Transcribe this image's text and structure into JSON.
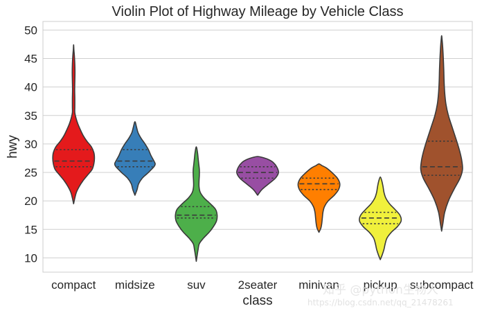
{
  "chart_data": {
    "type": "violin",
    "title": "Violin Plot of Highway Mileage by Vehicle Class",
    "xlabel": "class",
    "ylabel": "hwy",
    "ylim": [
      7.5,
      51.5
    ],
    "yticks": [
      10,
      15,
      20,
      25,
      30,
      35,
      40,
      45,
      50
    ],
    "grid": "horizontal",
    "legend": "none",
    "inner": "quartile",
    "categories": [
      "compact",
      "midsize",
      "suv",
      "2seater",
      "minivan",
      "pickup",
      "subcompact"
    ],
    "violins": [
      {
        "category": "compact",
        "color": "#e41a1c",
        "min": 19.5,
        "max": 47.4,
        "q1": 26.0,
        "median": 27.0,
        "q3": 29.0,
        "profile": [
          [
            19.5,
            0
          ],
          [
            20.5,
            0.04
          ],
          [
            21.5,
            0.09
          ],
          [
            22.5,
            0.18
          ],
          [
            23.5,
            0.3
          ],
          [
            24.5,
            0.45
          ],
          [
            25.5,
            0.6
          ],
          [
            26.5,
            0.66
          ],
          [
            27.5,
            0.68
          ],
          [
            28.5,
            0.66
          ],
          [
            29.5,
            0.58
          ],
          [
            30.5,
            0.43
          ],
          [
            31.5,
            0.31
          ],
          [
            32.5,
            0.22
          ],
          [
            33.5,
            0.14
          ],
          [
            34.5,
            0.08
          ],
          [
            35.5,
            0.04
          ],
          [
            36.5,
            0.04
          ],
          [
            38,
            0.04
          ],
          [
            39.5,
            0.035
          ],
          [
            41,
            0.04
          ],
          [
            42.5,
            0.045
          ],
          [
            44,
            0.04
          ],
          [
            45.5,
            0.025
          ],
          [
            46.5,
            0.01
          ],
          [
            47.4,
            0
          ]
        ]
      },
      {
        "category": "midsize",
        "color": "#377eb8",
        "min": 21.0,
        "max": 33.9,
        "q1": 26.0,
        "median": 27.0,
        "q3": 29.0,
        "profile": [
          [
            21.0,
            0
          ],
          [
            22.0,
            0.07
          ],
          [
            23.0,
            0.12
          ],
          [
            24.0,
            0.24
          ],
          [
            25.0,
            0.44
          ],
          [
            26.0,
            0.62
          ],
          [
            26.5,
            0.66
          ],
          [
            27.0,
            0.62
          ],
          [
            28.0,
            0.52
          ],
          [
            29.0,
            0.44
          ],
          [
            30.0,
            0.33
          ],
          [
            31.0,
            0.2
          ],
          [
            32.0,
            0.1
          ],
          [
            33.0,
            0.05
          ],
          [
            33.9,
            0
          ]
        ]
      },
      {
        "category": "suv",
        "color": "#4daf4a",
        "min": 9.4,
        "max": 29.5,
        "q1": 17.0,
        "median": 17.5,
        "q3": 19.0,
        "profile": [
          [
            9.4,
            0
          ],
          [
            10.5,
            0.03
          ],
          [
            11.5,
            0.06
          ],
          [
            12.5,
            0.1
          ],
          [
            13.5,
            0.24
          ],
          [
            14.5,
            0.42
          ],
          [
            15.5,
            0.56
          ],
          [
            16.5,
            0.66
          ],
          [
            17.5,
            0.68
          ],
          [
            18.5,
            0.63
          ],
          [
            19.5,
            0.46
          ],
          [
            20.5,
            0.26
          ],
          [
            21.5,
            0.13
          ],
          [
            22.5,
            0.09
          ],
          [
            23.5,
            0.09
          ],
          [
            24.5,
            0.1
          ],
          [
            25.5,
            0.1
          ],
          [
            26.5,
            0.08
          ],
          [
            27.5,
            0.06
          ],
          [
            28.5,
            0.04
          ],
          [
            29.5,
            0
          ]
        ]
      },
      {
        "category": "2seater",
        "color": "#984ea3",
        "min": 21.0,
        "max": 27.8,
        "q1": 24.0,
        "median": 25.0,
        "q3": 26.0,
        "profile": [
          [
            21.0,
            0
          ],
          [
            22.0,
            0.14
          ],
          [
            23.0,
            0.36
          ],
          [
            24.0,
            0.58
          ],
          [
            25.0,
            0.68
          ],
          [
            26.0,
            0.62
          ],
          [
            26.8,
            0.5
          ],
          [
            27.3,
            0.34
          ],
          [
            27.6,
            0.18
          ],
          [
            27.8,
            0
          ]
        ]
      },
      {
        "category": "minivan",
        "color": "#ff7f00",
        "min": 14.5,
        "max": 26.5,
        "q1": 22.0,
        "median": 23.0,
        "q3": 24.0,
        "profile": [
          [
            14.5,
            0
          ],
          [
            15.2,
            0.06
          ],
          [
            16.0,
            0.09
          ],
          [
            17.0,
            0.11
          ],
          [
            18.0,
            0.13
          ],
          [
            19.0,
            0.18
          ],
          [
            20.0,
            0.3
          ],
          [
            21.0,
            0.5
          ],
          [
            22.0,
            0.64
          ],
          [
            23.0,
            0.68
          ],
          [
            24.0,
            0.6
          ],
          [
            25.0,
            0.42
          ],
          [
            25.8,
            0.24
          ],
          [
            26.2,
            0.1
          ],
          [
            26.5,
            0
          ]
        ]
      },
      {
        "category": "pickup",
        "color": "#f0f03c",
        "min": 9.7,
        "max": 24.2,
        "q1": 16.0,
        "median": 17.0,
        "q3": 18.0,
        "profile": [
          [
            9.7,
            0
          ],
          [
            10.5,
            0.06
          ],
          [
            11.5,
            0.12
          ],
          [
            12.5,
            0.16
          ],
          [
            13.5,
            0.22
          ],
          [
            14.5,
            0.36
          ],
          [
            15.5,
            0.56
          ],
          [
            16.5,
            0.68
          ],
          [
            17.5,
            0.64
          ],
          [
            18.5,
            0.48
          ],
          [
            19.5,
            0.3
          ],
          [
            20.5,
            0.18
          ],
          [
            21.5,
            0.12
          ],
          [
            22.5,
            0.09
          ],
          [
            23.5,
            0.05
          ],
          [
            24.2,
            0
          ]
        ]
      },
      {
        "category": "subcompact",
        "color": "#a0522d",
        "min": 14.7,
        "max": 49.0,
        "q1": 24.5,
        "median": 26.0,
        "q3": 30.5,
        "profile": [
          [
            14.7,
            0
          ],
          [
            16.0,
            0.04
          ],
          [
            18.0,
            0.1
          ],
          [
            20.0,
            0.22
          ],
          [
            22.0,
            0.4
          ],
          [
            24.0,
            0.6
          ],
          [
            25.5,
            0.68
          ],
          [
            27.0,
            0.66
          ],
          [
            28.5,
            0.6
          ],
          [
            30.0,
            0.52
          ],
          [
            31.5,
            0.43
          ],
          [
            33.0,
            0.34
          ],
          [
            35.0,
            0.22
          ],
          [
            37.0,
            0.14
          ],
          [
            39.0,
            0.1
          ],
          [
            41.0,
            0.08
          ],
          [
            43.0,
            0.07
          ],
          [
            45.0,
            0.055
          ],
          [
            47.0,
            0.035
          ],
          [
            48.3,
            0.015
          ],
          [
            49.0,
            0
          ]
        ]
      }
    ]
  },
  "watermark": {
    "line1": "知乎 @python生物人",
    "line2": "https://blog.csdn.net/qq_21478261"
  }
}
